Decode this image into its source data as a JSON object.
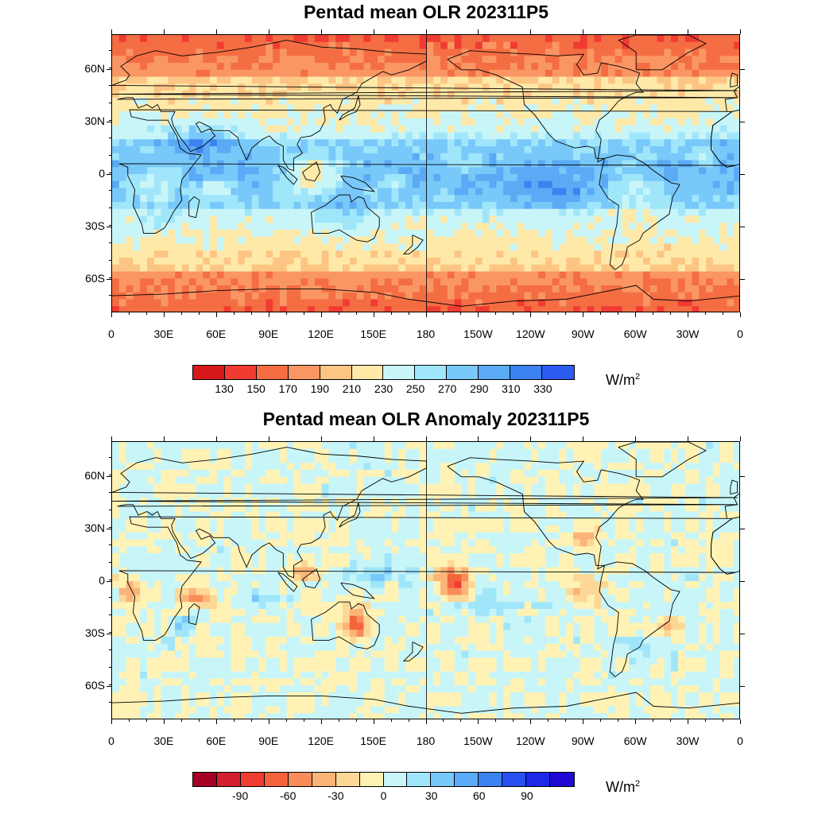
{
  "panels": [
    {
      "title": "Pentad mean OLR 202311P5",
      "colorbar": {
        "colors": [
          "#d7191c",
          "#f03b32",
          "#f46d43",
          "#fa9664",
          "#fdc584",
          "#fee9a8",
          "#c8f5f8",
          "#a0e6fa",
          "#78c8fa",
          "#5aaaf5",
          "#3c82f0",
          "#2d5af0"
        ],
        "labels": [
          "130",
          "150",
          "170",
          "190",
          "210",
          "230",
          "250",
          "270",
          "290",
          "310",
          "330"
        ],
        "units_base": "W/m",
        "units_exp": "2"
      }
    },
    {
      "title": "Pentad mean OLR Anomaly 202311P5",
      "colorbar": {
        "colors": [
          "#a50026",
          "#d21e2d",
          "#f03c32",
          "#f4643c",
          "#f88c5a",
          "#fbb478",
          "#fdd796",
          "#fff2b4",
          "#c8f5f8",
          "#a0e6fa",
          "#78c8fa",
          "#5aaaf5",
          "#3c82f0",
          "#2850f0",
          "#1e28e6",
          "#1e0ad2"
        ],
        "labels": [
          "-90",
          "-60",
          "-30",
          "0",
          "30",
          "60",
          "90"
        ],
        "units_base": "W/m",
        "units_exp": "2"
      }
    }
  ],
  "lat_labels": [
    "60N",
    "30N",
    "0",
    "30S",
    "60S"
  ],
  "lon_labels": [
    "0",
    "30E",
    "60E",
    "90E",
    "120E",
    "150E",
    "180",
    "150W",
    "120W",
    "90W",
    "60W",
    "30W",
    "0"
  ]
}
